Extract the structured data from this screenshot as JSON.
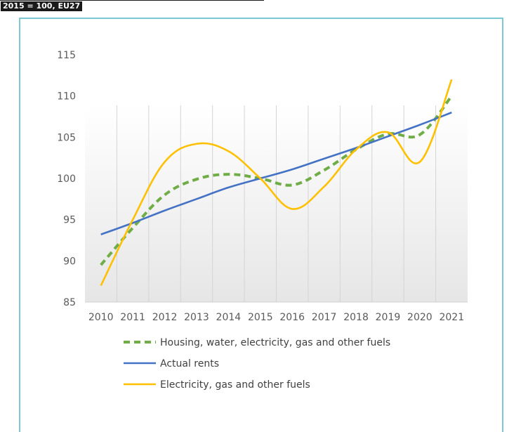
{
  "header": {
    "subtitle": "2015 = 100, EU27"
  },
  "chart_data": {
    "type": "line",
    "title": "",
    "xlabel": "",
    "ylabel": "",
    "x": [
      "2010",
      "2011",
      "2012",
      "2013",
      "2014",
      "2015",
      "2016",
      "2017",
      "2018",
      "2019",
      "2020",
      "2021"
    ],
    "ylim": [
      85,
      115
    ],
    "yticks": [
      85,
      90,
      95,
      100,
      105,
      110,
      115
    ],
    "grid": "vertical",
    "legend_position": "bottom",
    "series": [
      {
        "name": "Housing, water, electricity, gas and other fuels",
        "values": [
          89.5,
          94.0,
          98.0,
          99.9,
          100.5,
          100.0,
          99.2,
          101.0,
          103.5,
          105.4,
          105.3,
          110.0
        ],
        "color": "#70ad47",
        "style": "dashed"
      },
      {
        "name": "Actual rents",
        "values": [
          93.2,
          94.6,
          96.1,
          97.5,
          98.9,
          100.0,
          101.1,
          102.4,
          103.7,
          105.1,
          106.5,
          108.0
        ],
        "color": "#4472c4",
        "style": "solid"
      },
      {
        "name": "Electricity, gas and other fuels",
        "values": [
          87.0,
          95.0,
          102.0,
          104.2,
          103.3,
          100.0,
          96.3,
          99.0,
          103.5,
          105.6,
          102.0,
          112.0
        ],
        "color": "#ffc000",
        "style": "solid"
      }
    ]
  }
}
